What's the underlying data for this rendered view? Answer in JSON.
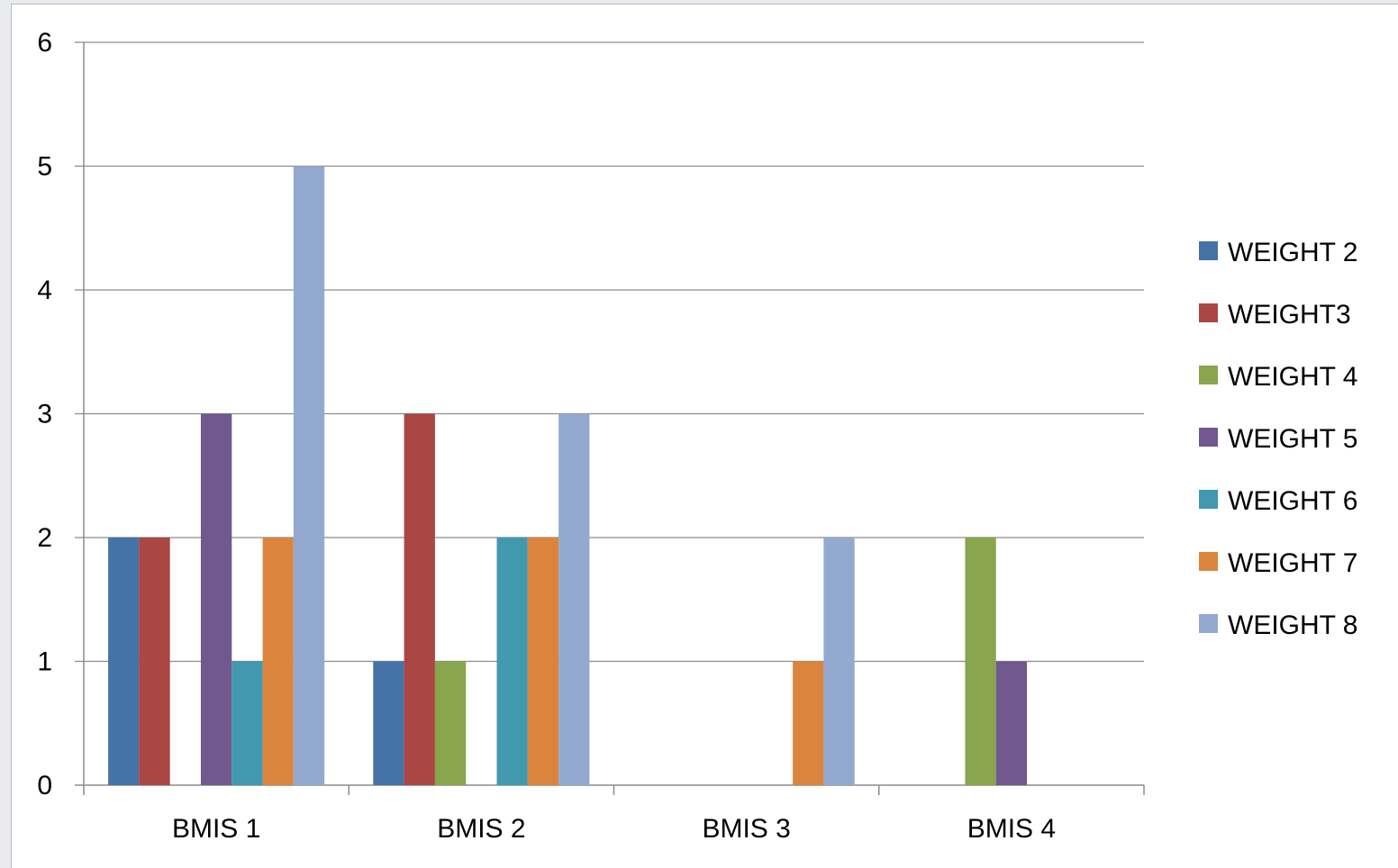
{
  "chart_data": {
    "type": "bar",
    "categories": [
      "BMIS 1",
      "BMIS 2",
      "BMIS 3",
      "BMIS 4"
    ],
    "series": [
      {
        "name": "WEIGHT 2",
        "color": "#4572a7",
        "values": [
          2,
          1,
          0,
          0
        ]
      },
      {
        "name": "WEIGHT3",
        "color": "#aa4643",
        "values": [
          2,
          3,
          0,
          0
        ]
      },
      {
        "name": "WEIGHT 4",
        "color": "#89a54e",
        "values": [
          0,
          1,
          0,
          2
        ]
      },
      {
        "name": "WEIGHT 5",
        "color": "#71588f",
        "values": [
          3,
          0,
          0,
          1
        ]
      },
      {
        "name": "WEIGHT 6",
        "color": "#4198af",
        "values": [
          1,
          2,
          0,
          0
        ]
      },
      {
        "name": "WEIGHT 7",
        "color": "#db843d",
        "values": [
          2,
          2,
          1,
          0
        ]
      },
      {
        "name": "WEIGHT 8",
        "color": "#93a9cf",
        "values": [
          5,
          3,
          2,
          0
        ]
      }
    ],
    "title": "",
    "xlabel": "",
    "ylabel": "",
    "ylim": [
      0,
      6
    ],
    "yticks": [
      "0",
      "1",
      "2",
      "3",
      "4",
      "5",
      "6"
    ],
    "grid": true,
    "legend_position": "right"
  }
}
